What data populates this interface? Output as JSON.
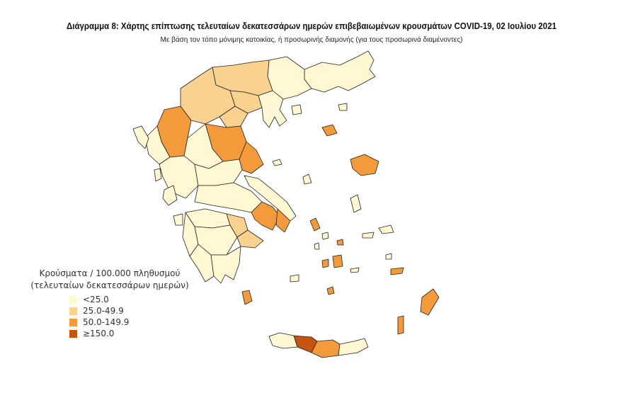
{
  "title": "Διάγραμμα 8: Χάρτης επίπτωσης τελευταίων δεκατεσσάρων ημερών επιβεβαιωμένων κρουσμάτων COVID-19, 02 Ιουλίου 2021",
  "subtitle": "Με βάση τον τόπο μόνιμης κατοικίας, ή προσωρινής διαμονής (για τους προσωρινά διαμένοντες)",
  "legend": {
    "title_line1": "Κρούσματα / 100.000 πληθυσμού",
    "title_line2": "(τελευταίων δεκατεσσάρων ημερών)",
    "items": [
      {
        "label": "<25.0",
        "color": "#fff8d2"
      },
      {
        "label": "25.0-49.9",
        "color": "#f8d28e"
      },
      {
        "label": "50.0-149.9",
        "color": "#f39a3b"
      },
      {
        "label": "≥150.0",
        "color": "#c4540f"
      }
    ]
  }
}
